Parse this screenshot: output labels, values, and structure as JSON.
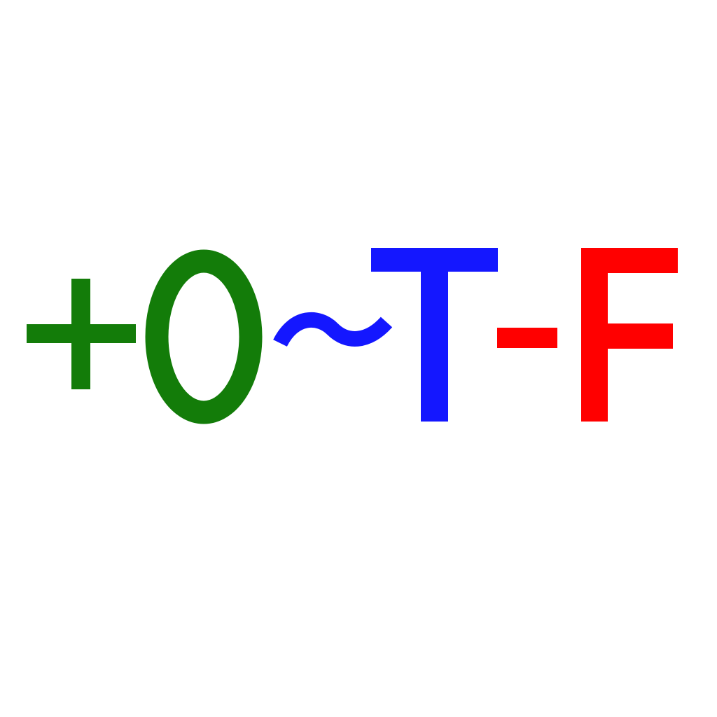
{
  "glyphs": [
    {
      "char": "+",
      "name": "plus-sign",
      "color": "#137c09"
    },
    {
      "char": "0",
      "name": "zero-digit",
      "color": "#137c09"
    },
    {
      "char": "~",
      "name": "tilde-sign",
      "color": "#1417ff"
    },
    {
      "char": "T",
      "name": "letter-t",
      "color": "#1417ff"
    },
    {
      "char": "-",
      "name": "minus-sign",
      "color": "#ff0000"
    },
    {
      "char": "F",
      "name": "letter-f",
      "color": "#ff0000"
    }
  ],
  "palette": {
    "background": "#ffffff",
    "green": "#137c09",
    "blue": "#1417ff",
    "red": "#ff0000"
  }
}
